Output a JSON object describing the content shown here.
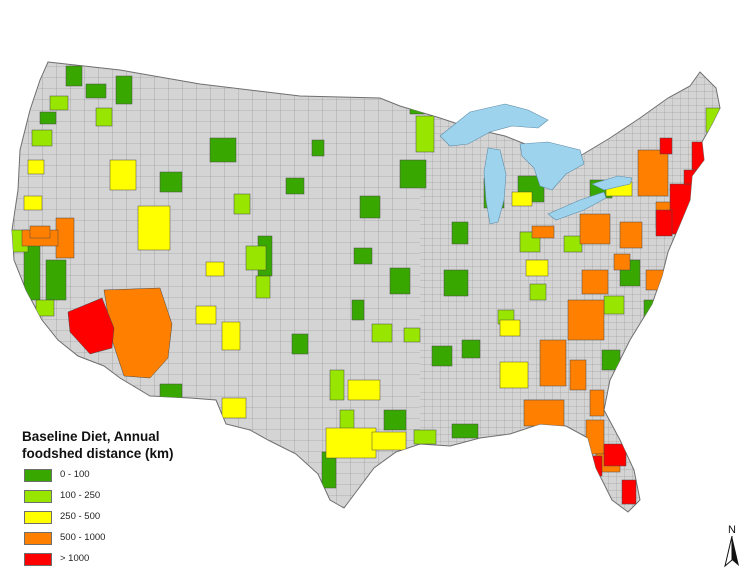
{
  "legend": {
    "title_line1": "Baseline Diet, Annual",
    "title_line2": "foodshed distance (km)",
    "items": [
      {
        "label": "0 - 100",
        "color": "#38a800"
      },
      {
        "label": "100 - 250",
        "color": "#98e600"
      },
      {
        "label": "250 - 500",
        "color": "#ffff00"
      },
      {
        "label": "500 - 1000",
        "color": "#ff7f00"
      },
      {
        "label": "> 1000",
        "color": "#ff0000"
      }
    ]
  },
  "north_arrow": {
    "letter": "N"
  },
  "colors": {
    "land": "#d4d4d4",
    "county_border": "#8c8c8c",
    "water": "#9ed3ee",
    "background": "#ffffff"
  }
}
